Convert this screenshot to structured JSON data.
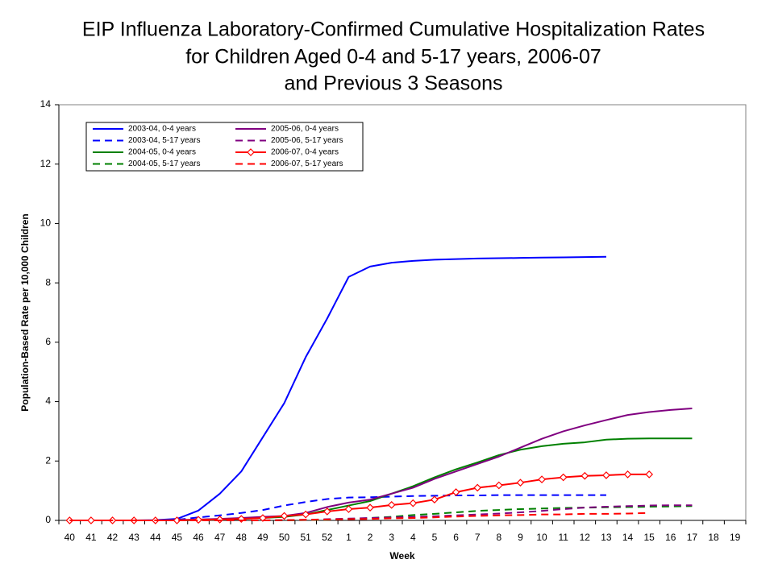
{
  "chart_data": {
    "type": "line",
    "title": [
      "EIP Influenza Laboratory-Confirmed Cumulative Hospitalization Rates",
      "for Children Aged 0-4 and 5-17 years, 2006-07",
      "and Previous 3 Seasons"
    ],
    "x_label": "Week",
    "y_label": "Population-Based Rate per 10,000 Children",
    "categories": [
      "40",
      "41",
      "42",
      "43",
      "44",
      "45",
      "46",
      "47",
      "48",
      "49",
      "50",
      "51",
      "52",
      "1",
      "2",
      "3",
      "4",
      "5",
      "6",
      "7",
      "8",
      "9",
      "10",
      "11",
      "12",
      "13",
      "14",
      "15",
      "16",
      "17",
      "18",
      "19"
    ],
    "ylim": [
      0,
      14
    ],
    "yticks": [
      0,
      2,
      4,
      6,
      8,
      10,
      12,
      14
    ],
    "grid": false,
    "series": [
      {
        "name": "2003-04, 0-4 years",
        "color": "#0000ff",
        "dash": false,
        "marker": false,
        "values": [
          0,
          0,
          0,
          0,
          0.01,
          0.05,
          0.33,
          0.9,
          1.65,
          2.8,
          3.95,
          5.5,
          6.8,
          8.2,
          8.55,
          8.68,
          8.74,
          8.78,
          8.8,
          8.82,
          8.83,
          8.84,
          8.85,
          8.86,
          8.87,
          8.88,
          null,
          null,
          null,
          null,
          null,
          null
        ]
      },
      {
        "name": "2003-04, 5-17 years",
        "color": "#0000ff",
        "dash": true,
        "marker": false,
        "values": [
          0,
          0,
          0,
          0,
          0,
          0.02,
          0.1,
          0.17,
          0.25,
          0.35,
          0.5,
          0.62,
          0.72,
          0.77,
          0.78,
          0.8,
          0.82,
          0.83,
          0.84,
          0.84,
          0.85,
          0.85,
          0.85,
          0.85,
          0.85,
          0.85,
          null,
          null,
          null,
          null,
          null,
          null
        ]
      },
      {
        "name": "2004-05, 0-4 years",
        "color": "#008000",
        "dash": false,
        "marker": false,
        "values": [
          0,
          0,
          0,
          0,
          0,
          0,
          0.01,
          0.03,
          0.05,
          0.08,
          0.12,
          0.2,
          0.35,
          0.5,
          0.65,
          0.9,
          1.15,
          1.45,
          1.72,
          1.95,
          2.2,
          2.38,
          2.5,
          2.58,
          2.63,
          2.72,
          2.75,
          2.76,
          2.76,
          2.76,
          null,
          null
        ]
      },
      {
        "name": "2004-05, 5-17 years",
        "color": "#008000",
        "dash": true,
        "marker": false,
        "values": [
          0,
          0,
          0,
          0,
          0,
          0,
          0,
          0,
          0,
          0,
          0,
          0.01,
          0.02,
          0.05,
          0.08,
          0.12,
          0.18,
          0.22,
          0.27,
          0.32,
          0.35,
          0.38,
          0.4,
          0.42,
          0.43,
          0.44,
          0.45,
          0.46,
          0.47,
          0.48,
          null,
          null
        ]
      },
      {
        "name": "2005-06, 0-4 years",
        "color": "#800080",
        "dash": false,
        "marker": false,
        "values": [
          0,
          0,
          0,
          0,
          0,
          0.01,
          0.03,
          0.05,
          0.08,
          0.12,
          0.15,
          0.25,
          0.45,
          0.6,
          0.7,
          0.9,
          1.1,
          1.4,
          1.65,
          1.9,
          2.15,
          2.45,
          2.75,
          3.0,
          3.2,
          3.38,
          3.55,
          3.65,
          3.72,
          3.77,
          null,
          null
        ]
      },
      {
        "name": "2005-06, 5-17 years",
        "color": "#800080",
        "dash": true,
        "marker": false,
        "values": [
          0,
          0,
          0,
          0,
          0,
          0,
          0,
          0,
          0,
          0,
          0.01,
          0.02,
          0.04,
          0.06,
          0.08,
          0.1,
          0.12,
          0.14,
          0.17,
          0.2,
          0.23,
          0.27,
          0.32,
          0.38,
          0.43,
          0.46,
          0.48,
          0.5,
          0.51,
          0.51,
          null,
          null
        ]
      },
      {
        "name": "2006-07, 0-4 years",
        "color": "#ff0000",
        "dash": false,
        "marker": true,
        "values": [
          0,
          0,
          0,
          0,
          0,
          0,
          0.02,
          0.03,
          0.05,
          0.08,
          0.15,
          0.2,
          0.3,
          0.38,
          0.43,
          0.52,
          0.58,
          0.7,
          0.95,
          1.1,
          1.18,
          1.27,
          1.38,
          1.45,
          1.5,
          1.52,
          1.55,
          1.55,
          null,
          null,
          null,
          null
        ]
      },
      {
        "name": "2006-07, 5-17 years",
        "color": "#ff0000",
        "dash": true,
        "marker": false,
        "values": [
          0,
          0,
          0,
          0,
          0,
          0,
          0,
          0,
          0,
          0,
          0.01,
          0.02,
          0.03,
          0.04,
          0.05,
          0.07,
          0.08,
          0.1,
          0.13,
          0.15,
          0.17,
          0.18,
          0.2,
          0.2,
          0.22,
          0.22,
          0.23,
          0.25,
          null,
          null,
          null,
          null
        ]
      }
    ]
  }
}
